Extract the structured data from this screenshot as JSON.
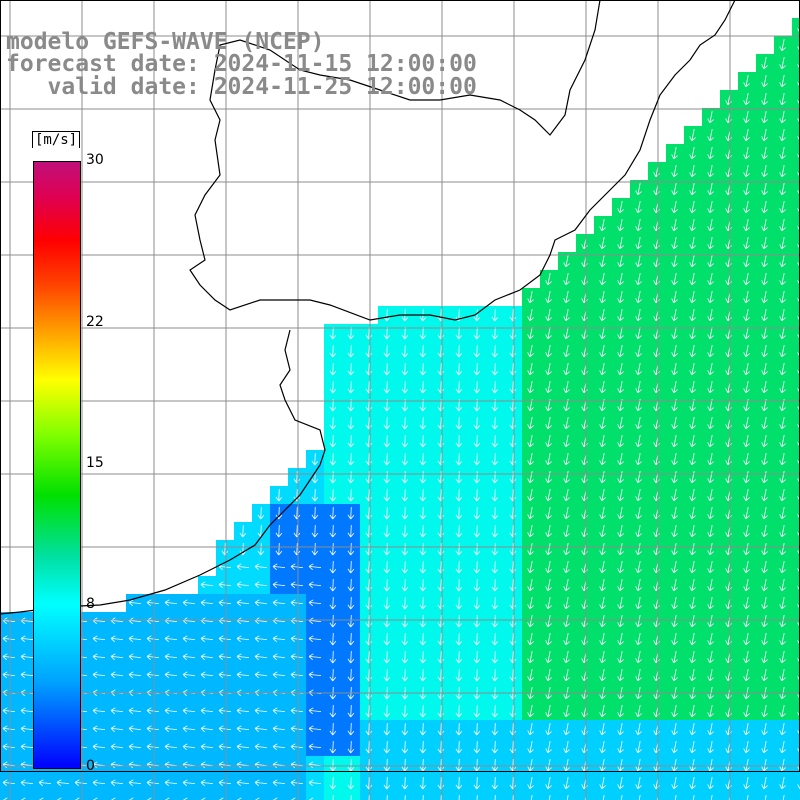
{
  "title": {
    "line1": "modelo GEFS-WAVE (NCEP)",
    "line2": "forecast date: 2024-11-15 12:00:00",
    "line3": "valid date: 2024-11-25 12:00:00"
  },
  "colorbar": {
    "unit": "[m/s]",
    "ticks": [
      {
        "label": "30",
        "value": 30
      },
      {
        "label": "22",
        "value": 22
      },
      {
        "label": "15",
        "value": 15
      },
      {
        "label": "8",
        "value": 8
      },
      {
        "label": "0",
        "value": 0
      }
    ],
    "range": [
      0,
      30
    ]
  },
  "colors": {
    "land": "#ffffff",
    "coastline": "#000000",
    "grid": "#8c8c8c",
    "arrows": "#ffffff",
    "title": "#8a8a8a"
  }
}
